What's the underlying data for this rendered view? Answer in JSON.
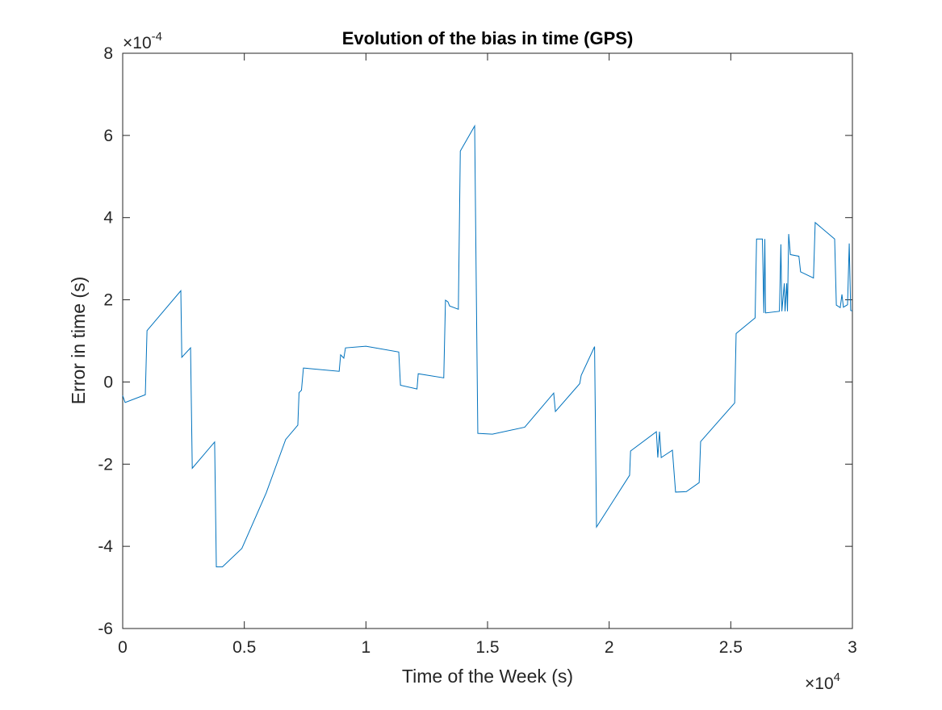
{
  "chart_data": {
    "type": "line",
    "title": "Evolution of the bias in time (GPS)",
    "x_label": "Time of the Week (s)",
    "y_label": "Error in time (s)",
    "x_multiplier": {
      "base": "×10",
      "exponent": "4"
    },
    "y_multiplier": {
      "base": "×10",
      "exponent": "-4"
    },
    "xlim": [
      0,
      3
    ],
    "xticks": [
      0,
      0.5,
      1,
      1.5,
      2,
      2.5,
      3
    ],
    "ylim": [
      -6,
      8
    ],
    "yticks": [
      -6,
      -4,
      -2,
      0,
      2,
      4,
      6,
      8
    ],
    "series": [
      {
        "color": "#0072bd",
        "x": [
          0,
          0.01,
          0.093,
          0.1,
          0.239,
          0.243,
          0.279,
          0.286,
          0.378,
          0.385,
          0.41,
          0.49,
          0.59,
          0.67,
          0.72,
          0.725,
          0.735,
          0.743,
          0.89,
          0.896,
          0.909,
          0.916,
          1.0,
          1.135,
          1.142,
          1.21,
          1.215,
          1.32,
          1.327,
          1.337,
          1.344,
          1.38,
          1.388,
          1.447,
          1.454,
          1.46,
          1.52,
          1.653,
          1.772,
          1.779,
          1.879,
          1.885,
          1.94,
          1.948,
          2.084,
          2.088,
          2.194,
          2.2,
          2.207,
          2.214,
          2.26,
          2.273,
          2.317,
          2.37,
          2.376,
          2.516,
          2.522,
          2.6,
          2.606,
          2.63,
          2.636,
          2.64,
          2.643,
          2.7,
          2.706,
          2.71,
          2.72,
          2.723,
          2.73,
          2.733,
          2.738,
          2.745,
          2.78,
          2.787,
          2.84,
          2.847,
          2.927,
          2.934,
          2.95,
          2.957,
          2.963,
          2.98,
          2.987,
          2.993,
          3.0
        ],
        "values": [
          -0.33,
          -0.5,
          -0.31,
          1.25,
          2.22,
          0.6,
          0.83,
          -2.1,
          -1.46,
          -4.5,
          -4.5,
          -4.05,
          -2.7,
          -1.4,
          -1.05,
          -0.26,
          -0.2,
          0.34,
          0.26,
          0.66,
          0.58,
          0.83,
          0.87,
          0.73,
          -0.08,
          -0.17,
          0.2,
          0.1,
          1.99,
          1.95,
          1.85,
          1.77,
          5.62,
          6.23,
          2.1,
          -1.25,
          -1.27,
          -1.1,
          -0.27,
          -0.72,
          -0.04,
          0.16,
          0.86,
          -3.53,
          -2.27,
          -1.68,
          -1.21,
          -1.84,
          -1.21,
          -1.84,
          -1.66,
          -2.68,
          -2.67,
          -2.45,
          -1.45,
          -0.51,
          1.18,
          1.56,
          3.48,
          3.48,
          1.68,
          3.48,
          1.68,
          1.72,
          3.35,
          1.72,
          2.4,
          1.72,
          2.4,
          1.72,
          3.6,
          3.1,
          3.06,
          2.68,
          2.53,
          3.88,
          3.48,
          1.87,
          1.81,
          2.13,
          1.82,
          1.88,
          3.37,
          1.74,
          1.73
        ]
      }
    ]
  }
}
